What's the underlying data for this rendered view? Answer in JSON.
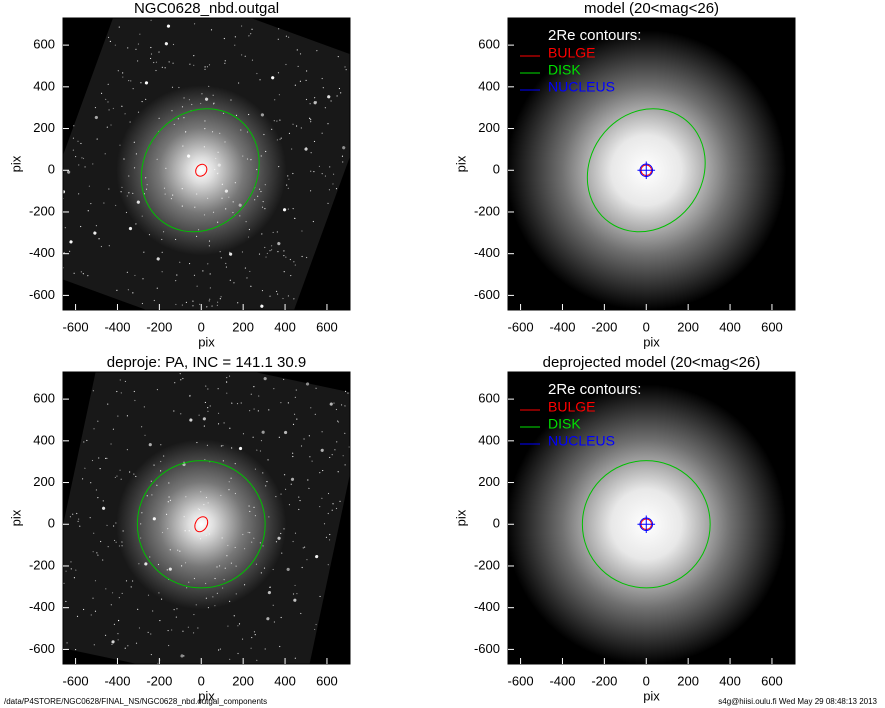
{
  "chart_data": [
    {
      "type": "image",
      "kind": "observed",
      "title": "NGC0628_nbd.outgal",
      "xlabel": "pix",
      "ylabel": "pix",
      "xlim": [
        -660,
        710
      ],
      "ylim": [
        -670,
        730
      ],
      "xticks": [
        -600,
        -400,
        -200,
        0,
        200,
        400,
        600
      ],
      "yticks": [
        -600,
        -400,
        -200,
        0,
        200,
        400,
        600
      ],
      "contours": [
        {
          "color": "#00c000",
          "x": -5,
          "y": 0,
          "a": 305,
          "b": 270,
          "angle": 55
        },
        {
          "color": "#ff0000",
          "x": 0,
          "y": 0,
          "a": 30,
          "b": 25,
          "angle": 55
        }
      ]
    },
    {
      "type": "image",
      "kind": "model",
      "title": "model (20<mag<26)",
      "xlabel": "pix",
      "ylabel": "pix",
      "xlim": [
        -660,
        710
      ],
      "ylim": [
        -670,
        730
      ],
      "xticks": [
        -600,
        -400,
        -200,
        0,
        200,
        400,
        600
      ],
      "yticks": [
        -600,
        -400,
        -200,
        0,
        200,
        400,
        600
      ],
      "legend": {
        "title": "2Re contours:",
        "items": [
          {
            "name": "BULGE",
            "color": "#ff0000"
          },
          {
            "name": "DISK",
            "color": "#00e000"
          },
          {
            "name": "NUCLEUS",
            "color": "#0000ff"
          }
        ]
      },
      "contours": [
        {
          "color": "#00c000",
          "x": 0,
          "y": 0,
          "a": 305,
          "b": 270,
          "angle": 55
        },
        {
          "color": "#ff0000",
          "x": 0,
          "y": 0,
          "a": 25,
          "b": 25,
          "angle": 0
        },
        {
          "color": "#0000ff",
          "x": 0,
          "y": 0,
          "a": 30,
          "b": 30,
          "angle": 0
        }
      ]
    },
    {
      "type": "image",
      "kind": "observed",
      "title": "deproje: PA, INC = 141.1    30.9",
      "xlabel": "pix",
      "ylabel": "pix",
      "xlim": [
        -660,
        710
      ],
      "ylim": [
        -670,
        730
      ],
      "xticks": [
        -600,
        -400,
        -200,
        0,
        200,
        400,
        600
      ],
      "yticks": [
        -600,
        -400,
        -200,
        0,
        200,
        400,
        600
      ],
      "contours": [
        {
          "color": "#00c000",
          "x": 0,
          "y": 0,
          "a": 305,
          "b": 305,
          "angle": 0
        },
        {
          "color": "#ff0000",
          "x": 0,
          "y": 0,
          "a": 38,
          "b": 28,
          "angle": 60
        }
      ]
    },
    {
      "type": "image",
      "kind": "model",
      "title": "deprojected model (20<mag<26)",
      "xlabel": "pix",
      "ylabel": "pix",
      "xlim": [
        -660,
        710
      ],
      "ylim": [
        -670,
        730
      ],
      "xticks": [
        -600,
        -400,
        -200,
        0,
        200,
        400,
        600
      ],
      "yticks": [
        -600,
        -400,
        -200,
        0,
        200,
        400,
        600
      ],
      "legend": {
        "title": "2Re contours:",
        "items": [
          {
            "name": "BULGE",
            "color": "#ff0000"
          },
          {
            "name": "DISK",
            "color": "#00e000"
          },
          {
            "name": "NUCLEUS",
            "color": "#0000ff"
          }
        ]
      },
      "contours": [
        {
          "color": "#00c000",
          "x": 0,
          "y": 0,
          "a": 305,
          "b": 305,
          "angle": 0
        },
        {
          "color": "#ff0000",
          "x": 0,
          "y": 0,
          "a": 25,
          "b": 25,
          "angle": 0
        },
        {
          "color": "#0000ff",
          "x": 0,
          "y": 0,
          "a": 30,
          "b": 30,
          "angle": 0
        }
      ]
    }
  ],
  "footer": {
    "left": "/data/P4STORE/NGC0628/FINAL_NS/NGC0628_nbd.outgal_components",
    "right": "s4g@hiisi.oulu.fi  Wed May 29 08:48:13 2013"
  }
}
